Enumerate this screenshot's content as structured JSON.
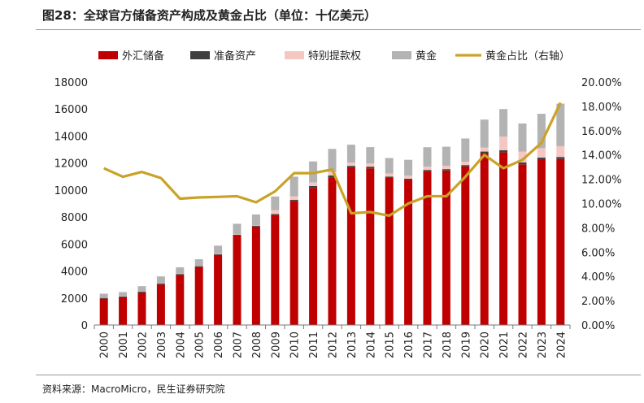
{
  "title": "图28：全球官方储备资产构成及黄金占比（单位：十亿美元）",
  "source": "资料来源：MacroMicro，民生证券研究院",
  "chart_data": {
    "type": "bar",
    "stacked": true,
    "categories": [
      "2000",
      "2001",
      "2002",
      "2003",
      "2004",
      "2005",
      "2006",
      "2007",
      "2008",
      "2009",
      "2010",
      "2011",
      "2012",
      "2013",
      "2014",
      "2015",
      "2016",
      "2017",
      "2018",
      "2019",
      "2020",
      "2021",
      "2022",
      "2023",
      "2024"
    ],
    "series": [
      {
        "name": "外汇储备",
        "color": "#c00000",
        "values": [
          1950,
          2050,
          2400,
          3000,
          3700,
          4300,
          5200,
          6650,
          7300,
          8150,
          9200,
          10150,
          10900,
          11650,
          11600,
          10900,
          10750,
          11400,
          11450,
          11750,
          12700,
          12800,
          11900,
          12250,
          12300
        ]
      },
      {
        "name": "准备资产",
        "color": "#404040",
        "values": [
          60,
          60,
          70,
          80,
          80,
          60,
          50,
          40,
          60,
          70,
          70,
          150,
          180,
          140,
          130,
          100,
          90,
          90,
          100,
          100,
          150,
          150,
          150,
          150,
          150
        ]
      },
      {
        "name": "特别提款权",
        "color": "#f4c7c3",
        "values": [
          30,
          30,
          30,
          30,
          30,
          30,
          30,
          30,
          30,
          300,
          270,
          270,
          270,
          250,
          240,
          230,
          230,
          250,
          250,
          250,
          300,
          1000,
          800,
          700,
          800
        ]
      },
      {
        "name": "黄金",
        "color": "#b3b3b3",
        "values": [
          280,
          300,
          380,
          490,
          470,
          480,
          600,
          780,
          800,
          1000,
          1450,
          1550,
          1700,
          1320,
          1210,
          1140,
          1170,
          1430,
          1410,
          1720,
          2070,
          2050,
          2080,
          2550,
          3150
        ]
      }
    ],
    "line": {
      "name": "黄金占比（右轴）",
      "color": "#c9a227",
      "values": [
        12.9,
        12.2,
        12.6,
        12.1,
        10.4,
        10.5,
        10.55,
        10.6,
        10.1,
        11.0,
        12.5,
        12.5,
        12.8,
        9.2,
        9.3,
        9.0,
        10.0,
        10.6,
        10.6,
        12.2,
        14.0,
        12.9,
        13.6,
        15.0,
        18.3
      ]
    },
    "y_left": {
      "min": 0,
      "max": 18000,
      "step": 2000,
      "ticks": [
        "0",
        "2000",
        "4000",
        "6000",
        "8000",
        "10000",
        "12000",
        "14000",
        "16000",
        "18000"
      ]
    },
    "y_right": {
      "min": 0,
      "max": 20,
      "step": 2,
      "ticks": [
        "0.00%",
        "2.00%",
        "4.00%",
        "6.00%",
        "8.00%",
        "10.00%",
        "12.00%",
        "14.00%",
        "16.00%",
        "18.00%",
        "20.00%"
      ]
    },
    "legend": [
      "外汇储备",
      "准备资产",
      "特别提款权",
      "黄金",
      "黄金占比（右轴）"
    ],
    "legend_position": "top"
  }
}
